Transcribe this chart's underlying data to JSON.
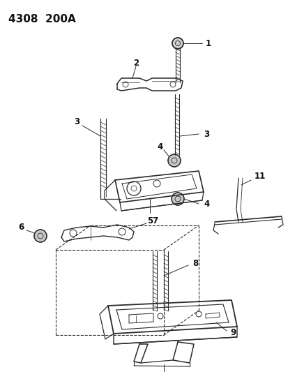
{
  "title": "4308  200A",
  "background_color": "#ffffff",
  "line_color": "#2a2a2a",
  "label_color": "#111111",
  "fig_width": 4.14,
  "fig_height": 5.33,
  "dpi": 100
}
